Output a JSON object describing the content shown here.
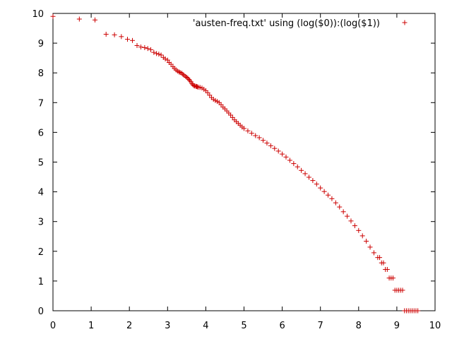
{
  "chart_data": {
    "type": "scatter",
    "title": "",
    "xlabel": "",
    "ylabel": "",
    "xlim": [
      0,
      10
    ],
    "ylim": [
      0,
      10
    ],
    "xticks": [
      0,
      1,
      2,
      3,
      4,
      5,
      6,
      7,
      8,
      9,
      10
    ],
    "yticks": [
      0,
      1,
      2,
      3,
      4,
      5,
      6,
      7,
      8,
      9,
      10
    ],
    "grid": false,
    "legend_position": "top-right",
    "series": [
      {
        "name": "'austen-freq.txt' using (log($0)):(log($1))",
        "color": "#cc0000",
        "marker": "plus",
        "points": [
          [
            0.0,
            9.9
          ],
          [
            0.69,
            9.81
          ],
          [
            1.1,
            9.78
          ],
          [
            1.39,
            9.3
          ],
          [
            1.61,
            9.28
          ],
          [
            1.79,
            9.22
          ],
          [
            1.95,
            9.13
          ],
          [
            2.08,
            9.09
          ],
          [
            2.2,
            8.92
          ],
          [
            2.3,
            8.87
          ],
          [
            2.4,
            8.85
          ],
          [
            2.48,
            8.82
          ],
          [
            2.56,
            8.78
          ],
          [
            2.64,
            8.69
          ],
          [
            2.71,
            8.65
          ],
          [
            2.77,
            8.63
          ],
          [
            2.83,
            8.6
          ],
          [
            2.89,
            8.52
          ],
          [
            2.94,
            8.47
          ],
          [
            3.0,
            8.43
          ],
          [
            3.04,
            8.35
          ],
          [
            3.09,
            8.29
          ],
          [
            3.14,
            8.21
          ],
          [
            3.18,
            8.15
          ],
          [
            3.22,
            8.1
          ],
          [
            3.26,
            8.06
          ],
          [
            3.3,
            8.03
          ],
          [
            3.33,
            8.01
          ],
          [
            3.37,
            7.99
          ],
          [
            3.4,
            7.95
          ],
          [
            3.43,
            7.92
          ],
          [
            3.47,
            7.88
          ],
          [
            3.5,
            7.85
          ],
          [
            3.53,
            7.82
          ],
          [
            3.56,
            7.78
          ],
          [
            3.58,
            7.74
          ],
          [
            3.61,
            7.7
          ],
          [
            3.64,
            7.64
          ],
          [
            3.66,
            7.6
          ],
          [
            3.69,
            7.57
          ],
          [
            3.71,
            7.56
          ],
          [
            3.74,
            7.55
          ],
          [
            3.76,
            7.54
          ],
          [
            3.78,
            7.53
          ],
          [
            3.81,
            7.52
          ],
          [
            3.85,
            7.51
          ],
          [
            3.9,
            7.49
          ],
          [
            3.95,
            7.45
          ],
          [
            4.0,
            7.4
          ],
          [
            4.05,
            7.33
          ],
          [
            4.1,
            7.25
          ],
          [
            4.15,
            7.17
          ],
          [
            4.2,
            7.11
          ],
          [
            4.25,
            7.07
          ],
          [
            4.3,
            7.04
          ],
          [
            4.35,
            7.0
          ],
          [
            4.4,
            6.93
          ],
          [
            4.45,
            6.85
          ],
          [
            4.5,
            6.79
          ],
          [
            4.55,
            6.72
          ],
          [
            4.6,
            6.65
          ],
          [
            4.65,
            6.58
          ],
          [
            4.7,
            6.5
          ],
          [
            4.75,
            6.42
          ],
          [
            4.8,
            6.36
          ],
          [
            4.85,
            6.3
          ],
          [
            4.9,
            6.24
          ],
          [
            4.95,
            6.18
          ],
          [
            5.0,
            6.13
          ],
          [
            5.1,
            6.05
          ],
          [
            5.2,
            5.97
          ],
          [
            5.3,
            5.89
          ],
          [
            5.4,
            5.82
          ],
          [
            5.5,
            5.73
          ],
          [
            5.6,
            5.64
          ],
          [
            5.7,
            5.55
          ],
          [
            5.8,
            5.46
          ],
          [
            5.9,
            5.37
          ],
          [
            6.0,
            5.27
          ],
          [
            6.1,
            5.17
          ],
          [
            6.2,
            5.06
          ],
          [
            6.3,
            4.95
          ],
          [
            6.4,
            4.84
          ],
          [
            6.5,
            4.72
          ],
          [
            6.6,
            4.61
          ],
          [
            6.7,
            4.49
          ],
          [
            6.8,
            4.38
          ],
          [
            6.9,
            4.26
          ],
          [
            7.0,
            4.13
          ],
          [
            7.1,
            4.01
          ],
          [
            7.2,
            3.89
          ],
          [
            7.3,
            3.77
          ],
          [
            7.4,
            3.63
          ],
          [
            7.5,
            3.49
          ],
          [
            7.6,
            3.33
          ],
          [
            7.7,
            3.18
          ],
          [
            7.8,
            3.02
          ],
          [
            7.9,
            2.86
          ],
          [
            8.0,
            2.7
          ],
          [
            8.1,
            2.52
          ],
          [
            8.2,
            2.34
          ],
          [
            8.3,
            2.14
          ],
          [
            8.4,
            1.95
          ],
          [
            8.5,
            1.79
          ],
          [
            8.55,
            1.79
          ],
          [
            8.6,
            1.61
          ],
          [
            8.65,
            1.61
          ],
          [
            8.7,
            1.39
          ],
          [
            8.75,
            1.39
          ],
          [
            8.8,
            1.1
          ],
          [
            8.85,
            1.1
          ],
          [
            8.9,
            1.1
          ],
          [
            8.95,
            0.69
          ],
          [
            9.0,
            0.69
          ],
          [
            9.05,
            0.69
          ],
          [
            9.1,
            0.69
          ],
          [
            9.15,
            0.69
          ],
          [
            9.2,
            0.0
          ],
          [
            9.25,
            0.0
          ],
          [
            9.3,
            0.0
          ],
          [
            9.35,
            0.0
          ],
          [
            9.4,
            0.0
          ],
          [
            9.45,
            0.0
          ],
          [
            9.5,
            0.0
          ],
          [
            9.55,
            0.0
          ]
        ]
      }
    ]
  }
}
